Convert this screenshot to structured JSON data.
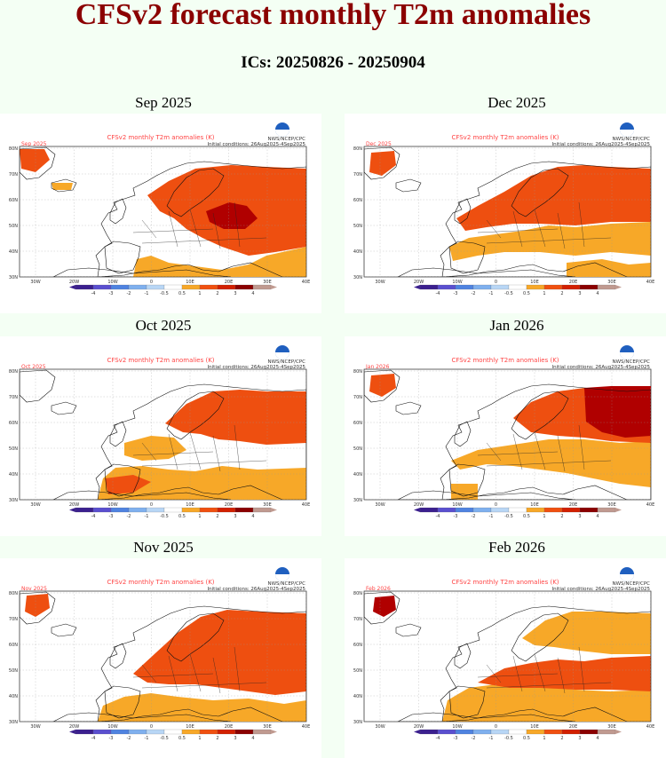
{
  "title": "CFSv2 forecast monthly T2m anomalies",
  "subtitle": "ICs: 20250826 - 20250904",
  "panel_common": {
    "map_title": "CFSv2 monthly T2m anomalies (K)",
    "credit": "NWS/NCEP/CPC",
    "init_text": "Initial conditions: 26Aug2025-4Sep2025",
    "lon_ticks": [
      "30W",
      "20W",
      "10W",
      "0",
      "10E",
      "20E",
      "30E",
      "40E"
    ],
    "lat_ticks": [
      "80N",
      "70N",
      "60N",
      "50N",
      "40N",
      "30N"
    ],
    "colorbar_labels": [
      "-4",
      "-3",
      "-2",
      "-1",
      "-0.5",
      "0.5",
      "1",
      "2",
      "3",
      "4"
    ],
    "colorbar_colors": [
      "#3b1f8f",
      "#5a4fcf",
      "#4f83e0",
      "#7fb0ee",
      "#b8d6f5",
      "#ffffff",
      "#f7a828",
      "#f05010",
      "#d22000",
      "#8b0000",
      "#c09a90"
    ],
    "anomaly_colors": {
      "warm1": "#f7a828",
      "warm2": "#ee4f10",
      "warm3": "#b00000"
    }
  },
  "panels": [
    {
      "label": "Sep 2025",
      "map_month": "Sep 2025"
    },
    {
      "label": "Dec 2025",
      "map_month": "Dec 2025"
    },
    {
      "label": "Oct 2025",
      "map_month": "Oct 2025"
    },
    {
      "label": "Jan 2026",
      "map_month": "Jan 2026"
    },
    {
      "label": "Nov 2025",
      "map_month": "Nov 2025"
    },
    {
      "label": "Feb 2026",
      "map_month": "Feb 2026"
    }
  ]
}
